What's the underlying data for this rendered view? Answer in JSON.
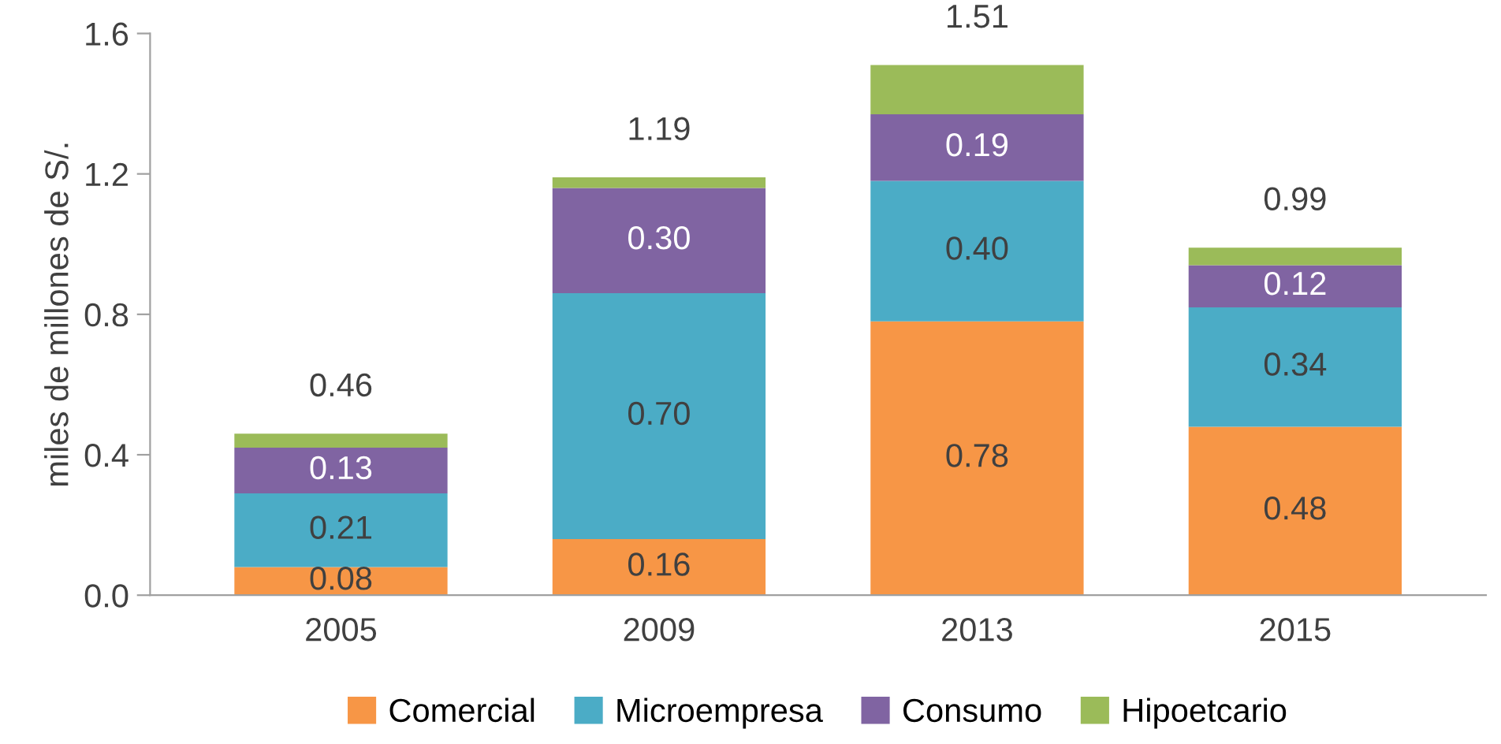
{
  "chart_data": {
    "type": "bar",
    "stacked": true,
    "ylabel": "miles de millones de S/.",
    "categories": [
      "2005",
      "2009",
      "2013",
      "2015"
    ],
    "series": [
      {
        "name": "Comercial",
        "color": "#f79646",
        "values": [
          0.08,
          0.16,
          0.78,
          0.48
        ],
        "value_labels": [
          "0.08",
          "0.16",
          "0.78",
          "0.48"
        ]
      },
      {
        "name": "Microempresa",
        "color": "#4bacc6",
        "values": [
          0.21,
          0.7,
          0.4,
          0.34
        ],
        "value_labels": [
          "0.21",
          "0.70",
          "0.40",
          "0.34"
        ]
      },
      {
        "name": "Consumo",
        "color": "#8064a2",
        "values": [
          0.13,
          0.3,
          0.19,
          0.12
        ],
        "value_labels": [
          "0.13",
          "0.30",
          "0.19",
          "0.12"
        ]
      },
      {
        "name": "Hipoetcario",
        "color": "#9bbb59",
        "values": [
          0.04,
          0.03,
          0.14,
          0.05
        ],
        "value_labels": [
          null,
          null,
          null,
          null
        ]
      }
    ],
    "totals": [
      "0.46",
      "1.19",
      "1.51",
      "0.99"
    ],
    "ylim": [
      0,
      1.6
    ],
    "yticks": [
      {
        "value": 0,
        "label": "0.0"
      },
      {
        "value": 0.4,
        "label": "0.4"
      },
      {
        "value": 0.8,
        "label": "0.8"
      },
      {
        "value": 1.2,
        "label": "1.2"
      },
      {
        "value": 1.6,
        "label": "1.6"
      }
    ],
    "grid": false,
    "legend": "bottom"
  }
}
